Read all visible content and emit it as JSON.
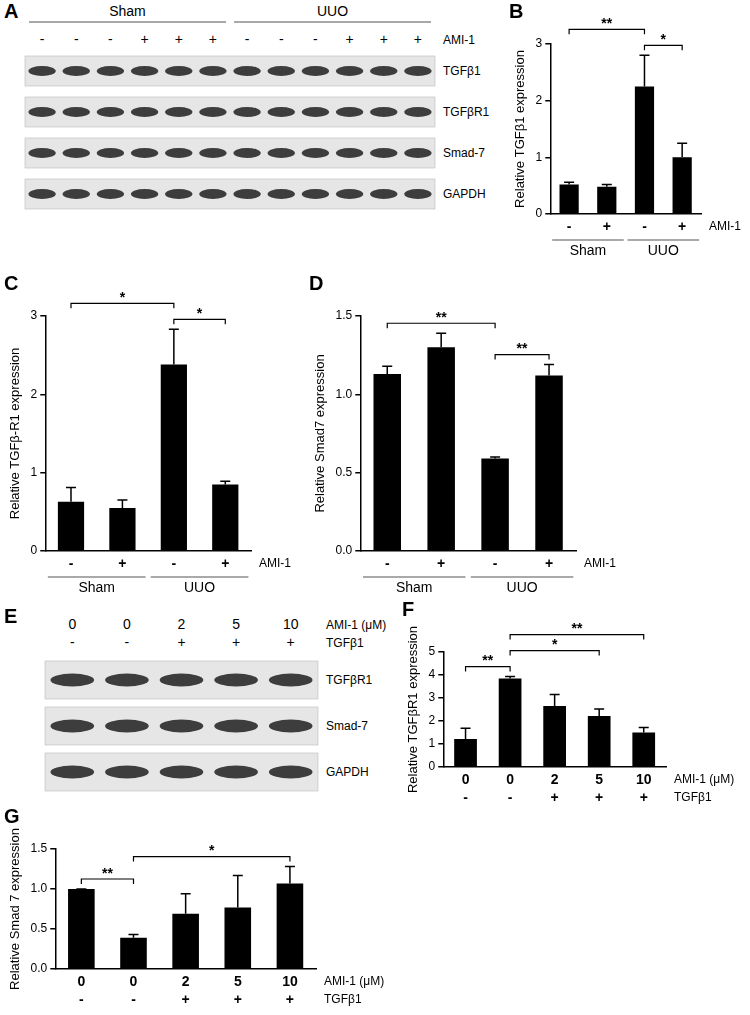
{
  "blots": [
    {
      "panel": "A",
      "groups": [
        {
          "label": "Sham",
          "size": 6
        },
        {
          "label": "UUO",
          "size": 6
        }
      ],
      "lane_rows": [
        {
          "label": "AMI-1",
          "values": [
            "-",
            "-",
            "-",
            "+",
            "+",
            "+",
            "-",
            "-",
            "-",
            "+",
            "+",
            "+"
          ]
        }
      ],
      "bands": [
        "TGFβ1",
        "TGFβR1",
        "Smad-7",
        "GAPDH"
      ]
    },
    {
      "panel": "E",
      "lane_rows": [
        {
          "label": "AMI-1 (μM)",
          "values": [
            "0",
            "0",
            "2",
            "5",
            "10"
          ]
        },
        {
          "label": "TGFβ1",
          "values": [
            "-",
            "-",
            "+",
            "+",
            "+"
          ]
        }
      ],
      "bands": [
        "TGFβR1",
        "Smad-7",
        "GAPDH"
      ]
    }
  ],
  "chart_data": [
    {
      "panel": "B",
      "type": "bar",
      "color": "#000000",
      "ylabel": "Relative TGFβ1 expression",
      "categories": [
        "-",
        "+",
        "-",
        "+"
      ],
      "category_label": "AMI-1",
      "groups": [
        {
          "label": "Sham",
          "size": 2
        },
        {
          "label": "UUO",
          "size": 2
        }
      ],
      "values": [
        0.52,
        0.48,
        2.25,
        1.0
      ],
      "errors": [
        0.04,
        0.04,
        0.55,
        0.25
      ],
      "ylim": [
        0,
        3
      ],
      "yticks": [
        0,
        1,
        2,
        3
      ],
      "annotations": [
        {
          "from": 0,
          "to": 2,
          "text": "**"
        },
        {
          "from": 2,
          "to": 3,
          "text": "*"
        }
      ]
    },
    {
      "panel": "C",
      "type": "bar",
      "color": "#000000",
      "ylabel": "Relative TGFβ-R1 expression",
      "categories": [
        "-",
        "+",
        "-",
        "+"
      ],
      "category_label": "AMI-1",
      "groups": [
        {
          "label": "Sham",
          "size": 2
        },
        {
          "label": "UUO",
          "size": 2
        }
      ],
      "values": [
        0.63,
        0.55,
        2.38,
        0.85
      ],
      "errors": [
        0.18,
        0.1,
        0.45,
        0.04
      ],
      "ylim": [
        0,
        3
      ],
      "yticks": [
        0,
        1,
        2,
        3
      ],
      "annotations": [
        {
          "from": 0,
          "to": 2,
          "text": "*"
        },
        {
          "from": 2,
          "to": 3,
          "text": "*"
        }
      ]
    },
    {
      "panel": "D",
      "type": "bar",
      "color": "#000000",
      "ylabel": "Relative Smad7 expression",
      "categories": [
        "-",
        "+",
        "-",
        "+"
      ],
      "category_label": "AMI-1",
      "groups": [
        {
          "label": "Sham",
          "size": 2
        },
        {
          "label": "UUO",
          "size": 2
        }
      ],
      "values": [
        1.13,
        1.3,
        0.59,
        1.12
      ],
      "errors": [
        0.05,
        0.09,
        0.01,
        0.07
      ],
      "ylim": [
        0,
        1.5
      ],
      "yticks": [
        {
          "value": 0,
          "label": "0.0"
        },
        {
          "value": 0.5,
          "label": "0.5"
        },
        {
          "value": 1,
          "label": "1.0"
        },
        {
          "value": 1.5,
          "label": "1.5"
        }
      ],
      "annotations": [
        {
          "from": 0,
          "to": 2,
          "text": "**"
        },
        {
          "from": 2,
          "to": 3,
          "text": "**"
        }
      ]
    },
    {
      "panel": "F",
      "type": "bar",
      "color": "#000000",
      "ylabel": "Relative TGFβR1 expression",
      "categories": [
        "0",
        "0",
        "2",
        "5",
        "10"
      ],
      "category_label": "AMI-1 (μM)",
      "extra_row": {
        "label": "TGFβ1",
        "values": [
          "-",
          "-",
          "+",
          "+",
          "+"
        ]
      },
      "values": [
        1.22,
        3.85,
        2.65,
        2.22,
        1.5
      ],
      "errors": [
        0.47,
        0.08,
        0.5,
        0.3,
        0.22
      ],
      "ylim": [
        0,
        5
      ],
      "yticks": [
        0,
        1,
        2,
        3,
        4,
        5
      ],
      "annotations": [
        {
          "from": 0,
          "to": 1,
          "text": "**"
        },
        {
          "from": 1,
          "to": 3,
          "text": "*"
        },
        {
          "from": 1,
          "to": 4,
          "text": "**"
        }
      ]
    },
    {
      "panel": "G",
      "type": "bar",
      "color": "#000000",
      "ylabel": "Relative Smad 7 expression",
      "categories": [
        "0",
        "0",
        "2",
        "5",
        "10"
      ],
      "category_label": "AMI-1 (μM)",
      "extra_row": {
        "label": "TGFβ1",
        "values": [
          "-",
          "-",
          "+",
          "+",
          "+"
        ]
      },
      "values": [
        1.0,
        0.39,
        0.69,
        0.77,
        1.07
      ],
      "errors": [
        0,
        0.04,
        0.25,
        0.4,
        0.21
      ],
      "ylim": [
        0,
        1.5
      ],
      "yticks": [
        {
          "value": 0,
          "label": "0.0"
        },
        {
          "value": 0.5,
          "label": "0.5"
        },
        {
          "value": 1,
          "label": "1.0"
        },
        {
          "value": 1.5,
          "label": "1.5"
        }
      ],
      "annotations": [
        {
          "from": 0,
          "to": 1,
          "text": "**"
        },
        {
          "from": 1,
          "to": 4,
          "text": "*"
        }
      ]
    }
  ]
}
